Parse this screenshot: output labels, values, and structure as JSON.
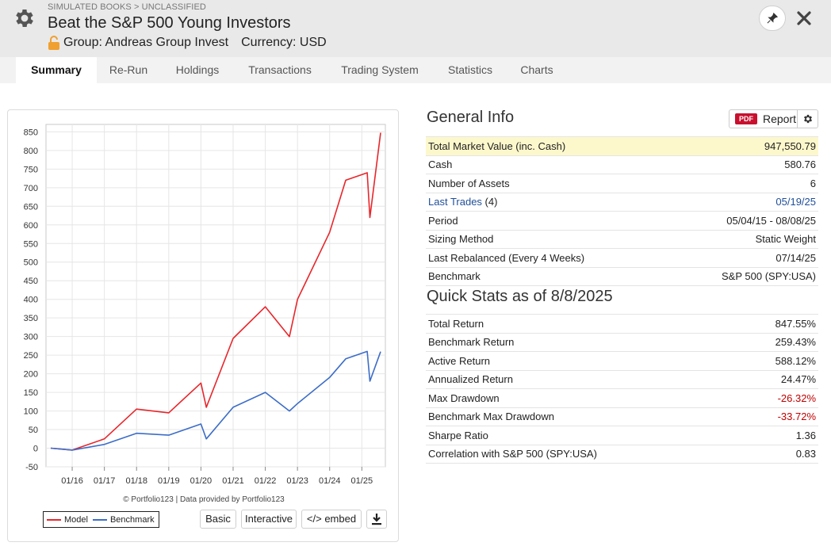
{
  "header": {
    "breadcrumb": "SIMULATED BOOKS > UNCLASSIFIED",
    "title": "Beat the S&P 500 Young Investors",
    "group": "Group: Andreas Group Invest",
    "currency": "Currency: USD"
  },
  "tabs": [
    {
      "label": "Summary"
    },
    {
      "label": "Re-Run"
    },
    {
      "label": "Holdings"
    },
    {
      "label": "Transactions"
    },
    {
      "label": "Trading System"
    },
    {
      "label": "Statistics"
    },
    {
      "label": "Charts"
    }
  ],
  "chart": {
    "credit": "© Portfolio123 | Data provided by Portfolio123",
    "buttons": {
      "basic": "Basic",
      "interactive": "Interactive",
      "embed": "</> embed"
    }
  },
  "chart_data": {
    "type": "line",
    "x": [
      "05/15",
      "01/16",
      "01/17",
      "01/18",
      "01/19",
      "01/20",
      "03/20",
      "01/21",
      "01/22",
      "10/22",
      "01/23",
      "01/24",
      "07/24",
      "03/25",
      "04/25",
      "08/25"
    ],
    "x_tick_labels": [
      "01/16",
      "01/17",
      "01/18",
      "01/19",
      "01/20",
      "01/21",
      "01/22",
      "01/23",
      "01/24",
      "01/25"
    ],
    "series": [
      {
        "name": "Model",
        "color": "#e8262b",
        "values": [
          0,
          -5,
          25,
          105,
          95,
          175,
          110,
          295,
          380,
          300,
          400,
          580,
          720,
          740,
          620,
          847.55
        ]
      },
      {
        "name": "Benchmark",
        "color": "#3c6dc8",
        "values": [
          0,
          -5,
          10,
          40,
          35,
          65,
          25,
          110,
          150,
          100,
          120,
          190,
          240,
          260,
          180,
          259.43
        ]
      }
    ],
    "ylim": [
      -50,
      870
    ],
    "yticks": [
      -50,
      0,
      50,
      100,
      150,
      200,
      250,
      300,
      350,
      400,
      450,
      500,
      550,
      600,
      650,
      700,
      750,
      800,
      850
    ],
    "grid": true,
    "legend": "bottom-left"
  },
  "general_info": {
    "title": "General Info",
    "pdf_badge": "PDF",
    "report_label": "Report",
    "rows": [
      {
        "label": "Total Market Value (inc. Cash)",
        "value": "947,550.79"
      },
      {
        "label": "Cash",
        "value": "580.76"
      },
      {
        "label": "Number of Assets",
        "value": "6"
      },
      {
        "label": "Last Trades",
        "label_extra": " (4)",
        "value": "05/19/25"
      },
      {
        "label": "Period",
        "value": "05/04/15 - 08/08/25"
      },
      {
        "label": "Sizing Method",
        "value": "Static Weight"
      },
      {
        "label": "Last Rebalanced (Every 4 Weeks)",
        "value": "07/14/25"
      },
      {
        "label": "Benchmark",
        "value": "S&P 500 (SPY:USA)"
      }
    ]
  },
  "quick_stats": {
    "title": "Quick Stats as of 8/8/2025",
    "rows": [
      {
        "label": "Total Return",
        "value": "847.55%"
      },
      {
        "label": "Benchmark Return",
        "value": "259.43%"
      },
      {
        "label": "Active Return",
        "value": "588.12%"
      },
      {
        "label": "Annualized Return",
        "value": "24.47%"
      },
      {
        "label": "Max Drawdown",
        "value": "-26.32%"
      },
      {
        "label": "Benchmark Max Drawdown",
        "value": "-33.72%"
      },
      {
        "label": "Sharpe Ratio",
        "value": "1.36"
      },
      {
        "label": "Correlation with S&P 500 (SPY:USA)",
        "value": "0.83"
      }
    ]
  }
}
